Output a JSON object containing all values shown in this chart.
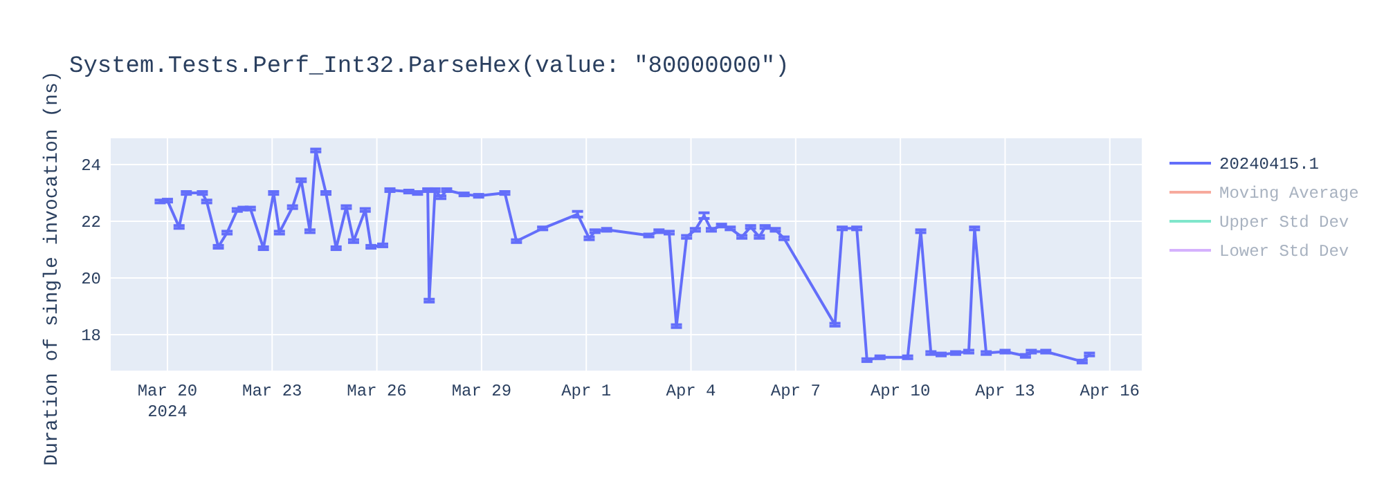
{
  "chart_data": {
    "type": "line",
    "title": "System.Tests.Perf_Int32.ParseHex(value: \"80000000\")",
    "ylabel": "Duration of single invocation (ns)",
    "x": [
      "2024-03-19T19:00",
      "2024-03-20T00:00",
      "2024-03-20T08:00",
      "2024-03-20T13:00",
      "2024-03-21T00:00",
      "2024-03-21T03:00",
      "2024-03-21T11:00",
      "2024-03-21T17:00",
      "2024-03-22T00:00",
      "2024-03-22T04:00",
      "2024-03-22T09:00",
      "2024-03-22T18:00",
      "2024-03-23T01:00",
      "2024-03-23T05:00",
      "2024-03-23T14:00",
      "2024-03-23T20:00",
      "2024-03-24T02:00",
      "2024-03-24T06:00",
      "2024-03-24T13:00",
      "2024-03-24T20:00",
      "2024-03-25T03:00",
      "2024-03-25T08:00",
      "2024-03-25T16:00",
      "2024-03-25T20:00",
      "2024-03-26T04:00",
      "2024-03-26T09:00",
      "2024-03-26T22:00",
      "2024-03-27T04:00",
      "2024-03-27T11:00",
      "2024-03-27T12:00",
      "2024-03-27T16:00",
      "2024-03-27T20:00",
      "2024-03-28T00:00",
      "2024-03-28T12:00",
      "2024-03-28T22:00",
      "2024-03-29T16:00",
      "2024-03-30T00:00",
      "2024-03-30T18:00",
      "2024-03-31T18:00",
      "2024-04-01T02:00",
      "2024-04-01T06:00",
      "2024-04-01T14:00",
      "2024-04-02T19:00",
      "2024-04-03T02:00",
      "2024-04-03T09:00",
      "2024-04-03T14:00",
      "2024-04-03T21:00",
      "2024-04-04T03:00",
      "2024-04-04T09:00",
      "2024-04-04T14:00",
      "2024-04-04T21:00",
      "2024-04-05T03:00",
      "2024-04-05T11:00",
      "2024-04-05T17:00",
      "2024-04-05T23:00",
      "2024-04-06T03:00",
      "2024-04-06T10:00",
      "2024-04-06T16:00",
      "2024-04-08T03:00",
      "2024-04-08T08:00",
      "2024-04-08T18:00",
      "2024-04-09T01:00",
      "2024-04-09T10:00",
      "2024-04-10T05:00",
      "2024-04-10T14:00",
      "2024-04-10T21:00",
      "2024-04-11T04:00",
      "2024-04-11T14:00",
      "2024-04-11T23:00",
      "2024-04-12T03:00",
      "2024-04-12T11:00",
      "2024-04-13T00:00",
      "2024-04-13T14:00",
      "2024-04-13T18:00",
      "2024-04-14T04:00",
      "2024-04-15T05:00",
      "2024-04-15T10:00"
    ],
    "series": [
      {
        "name": "20240415.1",
        "color": "#636efa",
        "values": [
          22.7,
          22.73,
          21.8,
          23.0,
          23.0,
          22.7,
          21.1,
          21.6,
          22.4,
          22.45,
          22.45,
          21.05,
          23.0,
          21.6,
          22.5,
          23.45,
          21.65,
          24.5,
          23.0,
          21.05,
          22.5,
          21.3,
          22.4,
          21.1,
          21.15,
          23.1,
          23.05,
          23.0,
          23.1,
          19.2,
          23.1,
          22.85,
          23.1,
          22.95,
          22.9,
          23.0,
          21.3,
          21.75,
          22.25,
          21.4,
          21.65,
          21.7,
          21.5,
          21.65,
          21.6,
          18.3,
          21.45,
          21.7,
          22.2,
          21.7,
          21.85,
          21.75,
          21.45,
          21.8,
          21.45,
          21.8,
          21.7,
          21.4,
          18.35,
          21.75,
          21.75,
          17.1,
          17.2,
          17.2,
          21.65,
          17.35,
          17.3,
          17.35,
          17.4,
          21.75,
          17.35,
          17.4,
          17.25,
          17.4,
          17.4,
          17.05,
          17.3
        ],
        "errors": [
          0.05,
          0.05,
          0.05,
          0.05,
          0.05,
          0.05,
          0.05,
          0.05,
          0.05,
          0.05,
          0.05,
          0.05,
          0.05,
          0.05,
          0.05,
          0.05,
          0.05,
          0.05,
          0.05,
          0.05,
          0.05,
          0.05,
          0.05,
          0.05,
          0.05,
          0.05,
          0.05,
          0.05,
          0.05,
          0.05,
          0.05,
          0.05,
          0.05,
          0.05,
          0.05,
          0.05,
          0.05,
          0.05,
          0.1,
          0.05,
          0.05,
          0.05,
          0.05,
          0.05,
          0.05,
          0.05,
          0.05,
          0.05,
          0.1,
          0.05,
          0.05,
          0.05,
          0.05,
          0.05,
          0.05,
          0.05,
          0.05,
          0.05,
          0.05,
          0.05,
          0.05,
          0.05,
          0.05,
          0.05,
          0.05,
          0.05,
          0.05,
          0.05,
          0.05,
          0.05,
          0.05,
          0.05,
          0.05,
          0.05,
          0.05,
          0.05,
          0.05
        ]
      },
      {
        "name": "Moving Average",
        "color": "#f7aa9d",
        "values": [
          null,
          null,
          null,
          null,
          null,
          null,
          null,
          null,
          null,
          null,
          null,
          null,
          null,
          null,
          null,
          null,
          null,
          null,
          null,
          null,
          null,
          null,
          null,
          null,
          null,
          null,
          null,
          null,
          null,
          null,
          null,
          null,
          null,
          null,
          null,
          null,
          null,
          null,
          null,
          null,
          null,
          null,
          null,
          null,
          null,
          null,
          null,
          null,
          null,
          null,
          null,
          null,
          null,
          null,
          null,
          null,
          null,
          null,
          null,
          null,
          null,
          null,
          null,
          null,
          null,
          null,
          null,
          null,
          null,
          null,
          null,
          null,
          null,
          null,
          null,
          null,
          null
        ]
      },
      {
        "name": "Upper Std Dev",
        "color": "#80e6cb",
        "values": [
          null,
          null,
          null,
          null,
          null,
          null,
          null,
          null,
          null,
          null,
          null,
          null,
          null,
          null,
          null,
          null,
          null,
          null,
          null,
          null,
          null,
          null,
          null,
          null,
          null,
          null,
          null,
          null,
          null,
          null,
          null,
          null,
          null,
          null,
          null,
          null,
          null,
          null,
          null,
          null,
          null,
          null,
          null,
          null,
          null,
          null,
          null,
          null,
          null,
          null,
          null,
          null,
          null,
          null,
          null,
          null,
          null,
          null,
          null,
          null,
          null,
          null,
          null,
          null,
          null,
          null,
          null,
          null,
          null,
          null,
          null,
          null,
          null,
          null,
          null,
          null,
          null
        ]
      },
      {
        "name": "Lower Std Dev",
        "color": "#d5b1fd",
        "values": [
          null,
          null,
          null,
          null,
          null,
          null,
          null,
          null,
          null,
          null,
          null,
          null,
          null,
          null,
          null,
          null,
          null,
          null,
          null,
          null,
          null,
          null,
          null,
          null,
          null,
          null,
          null,
          null,
          null,
          null,
          null,
          null,
          null,
          null,
          null,
          null,
          null,
          null,
          null,
          null,
          null,
          null,
          null,
          null,
          null,
          null,
          null,
          null,
          null,
          null,
          null,
          null,
          null,
          null,
          null,
          null,
          null,
          null,
          null,
          null,
          null,
          null,
          null,
          null,
          null,
          null,
          null,
          null,
          null,
          null,
          null,
          null,
          null,
          null,
          null,
          null,
          null
        ]
      }
    ],
    "xlim": [
      "2024-03-18T09:00",
      "2024-04-16T22:00"
    ],
    "xticks": [
      {
        "value": "2024-03-20",
        "label": "Mar 20\n2024"
      },
      {
        "value": "2024-03-23",
        "label": "Mar 23"
      },
      {
        "value": "2024-03-26",
        "label": "Mar 26"
      },
      {
        "value": "2024-03-29",
        "label": "Mar 29"
      },
      {
        "value": "2024-04-01",
        "label": "Apr 1"
      },
      {
        "value": "2024-04-04",
        "label": "Apr 4"
      },
      {
        "value": "2024-04-07",
        "label": "Apr 7"
      },
      {
        "value": "2024-04-10",
        "label": "Apr 10"
      },
      {
        "value": "2024-04-13",
        "label": "Apr 13"
      },
      {
        "value": "2024-04-16",
        "label": "Apr 16"
      }
    ],
    "ylim": [
      16.73,
      24.93
    ],
    "yticks": [
      18,
      20,
      22,
      24
    ],
    "grid": true,
    "legend": "top right",
    "marker": "none",
    "line_style": "solid"
  }
}
